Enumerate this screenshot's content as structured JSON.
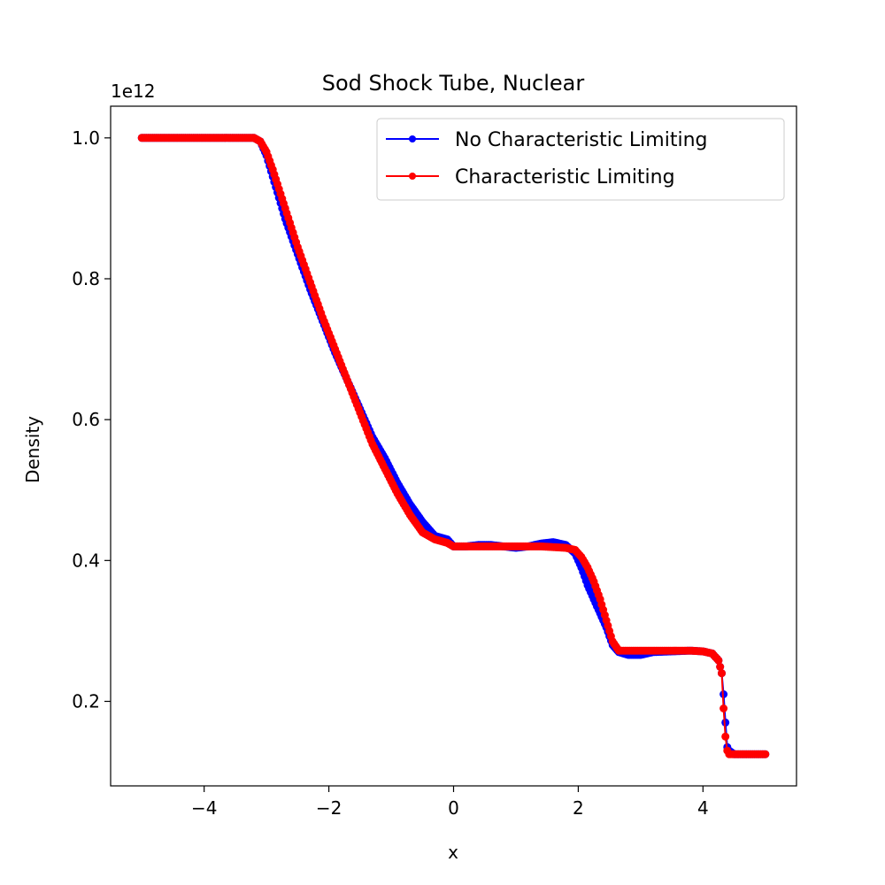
{
  "chart_data": {
    "type": "line",
    "title": "Sod Shock Tube, Nuclear",
    "xlabel": "x",
    "ylabel": "Density",
    "y_multiplier_label": "1e12",
    "xlim": [
      -5.5,
      5.5
    ],
    "ylim": [
      0.08,
      1.045
    ],
    "x_ticks": [
      -4,
      -2,
      0,
      2,
      4
    ],
    "x_tick_labels": [
      "−4",
      "−2",
      "0",
      "2",
      "4"
    ],
    "y_ticks": [
      0.2,
      0.4,
      0.6,
      0.8,
      1.0
    ],
    "y_tick_labels": [
      "0.2",
      "0.4",
      "0.6",
      "0.8",
      "1.0"
    ],
    "grid": false,
    "legend_position": "top-right",
    "series": [
      {
        "name": "No Characteristic Limiting",
        "color": "#0000ff",
        "x": [
          -5.0,
          -4.5,
          -4.0,
          -3.5,
          -3.2,
          -3.1,
          -3.0,
          -2.9,
          -2.7,
          -2.5,
          -2.3,
          -2.1,
          -1.9,
          -1.7,
          -1.5,
          -1.3,
          -1.1,
          -0.9,
          -0.7,
          -0.5,
          -0.3,
          -0.1,
          0.0,
          0.2,
          0.4,
          0.6,
          0.8,
          1.0,
          1.2,
          1.4,
          1.6,
          1.8,
          1.95,
          2.05,
          2.15,
          2.25,
          2.35,
          2.45,
          2.55,
          2.65,
          2.8,
          3.0,
          3.2,
          3.5,
          3.8,
          4.0,
          4.15,
          4.25,
          4.3,
          4.33,
          4.36,
          4.39,
          4.42,
          4.5,
          4.7,
          5.0
        ],
        "y": [
          1.0,
          1.0,
          1.0,
          1.0,
          1.0,
          0.995,
          0.975,
          0.945,
          0.885,
          0.835,
          0.785,
          0.74,
          0.695,
          0.655,
          0.615,
          0.575,
          0.545,
          0.51,
          0.48,
          0.455,
          0.435,
          0.43,
          0.42,
          0.42,
          0.422,
          0.422,
          0.42,
          0.418,
          0.42,
          0.424,
          0.426,
          0.422,
          0.41,
          0.39,
          0.365,
          0.345,
          0.325,
          0.305,
          0.28,
          0.27,
          0.266,
          0.266,
          0.27,
          0.271,
          0.272,
          0.271,
          0.268,
          0.258,
          0.24,
          0.21,
          0.17,
          0.135,
          0.13,
          0.125,
          0.125,
          0.125
        ]
      },
      {
        "name": "Characteristic Limiting",
        "color": "#ff0000",
        "x": [
          -5.0,
          -4.5,
          -4.0,
          -3.5,
          -3.2,
          -3.1,
          -3.0,
          -2.9,
          -2.7,
          -2.5,
          -2.3,
          -2.1,
          -1.9,
          -1.7,
          -1.5,
          -1.3,
          -1.1,
          -0.9,
          -0.7,
          -0.5,
          -0.3,
          -0.1,
          0.0,
          0.2,
          0.4,
          0.6,
          0.8,
          1.0,
          1.2,
          1.4,
          1.6,
          1.8,
          1.95,
          2.05,
          2.15,
          2.25,
          2.35,
          2.45,
          2.55,
          2.65,
          2.8,
          3.0,
          3.2,
          3.5,
          3.8,
          4.0,
          4.15,
          4.25,
          4.3,
          4.33,
          4.36,
          4.39,
          4.42,
          4.5,
          4.7,
          5.0
        ],
        "y": [
          1.0,
          1.0,
          1.0,
          1.0,
          1.0,
          0.995,
          0.98,
          0.955,
          0.9,
          0.845,
          0.795,
          0.745,
          0.7,
          0.655,
          0.61,
          0.565,
          0.53,
          0.495,
          0.465,
          0.44,
          0.43,
          0.425,
          0.42,
          0.42,
          0.42,
          0.42,
          0.42,
          0.42,
          0.42,
          0.42,
          0.419,
          0.418,
          0.415,
          0.405,
          0.39,
          0.37,
          0.345,
          0.315,
          0.285,
          0.272,
          0.272,
          0.272,
          0.272,
          0.272,
          0.272,
          0.271,
          0.268,
          0.258,
          0.24,
          0.19,
          0.15,
          0.13,
          0.125,
          0.125,
          0.125,
          0.125
        ]
      }
    ]
  }
}
